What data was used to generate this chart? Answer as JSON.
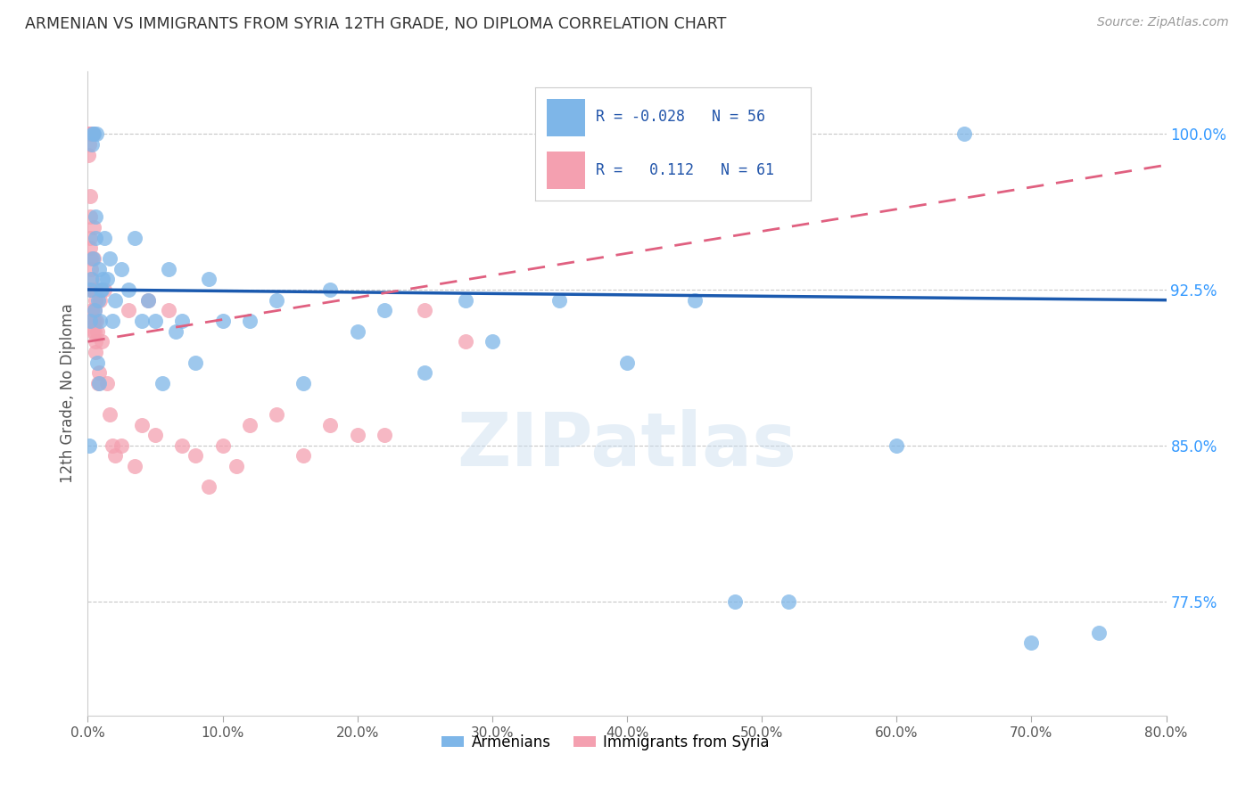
{
  "title": "ARMENIAN VS IMMIGRANTS FROM SYRIA 12TH GRADE, NO DIPLOMA CORRELATION CHART",
  "source": "Source: ZipAtlas.com",
  "xlabel_armenians": "Armenians",
  "xlabel_syria": "Immigrants from Syria",
  "ylabel": "12th Grade, No Diploma",
  "xlim": [
    0.0,
    80.0
  ],
  "ylim": [
    72.0,
    103.0
  ],
  "xticks": [
    0.0,
    10.0,
    20.0,
    30.0,
    40.0,
    50.0,
    60.0,
    70.0,
    80.0
  ],
  "yticks_right": [
    77.5,
    85.0,
    92.5,
    100.0
  ],
  "R_armenians": -0.028,
  "N_armenians": 56,
  "R_syria": 0.112,
  "N_syria": 61,
  "color_armenians": "#7EB6E8",
  "color_syria": "#F4A0B0",
  "trend_color_armenians": "#1B5AAF",
  "trend_color_syria": "#E06080",
  "watermark": "ZIPatlas",
  "background_color": "#FFFFFF",
  "grid_color": "#C8C8C8",
  "title_color": "#333333",
  "source_color": "#999999",
  "axis_label_color": "#555555",
  "tick_color_right": "#3399FF",
  "tick_color_bottom": "#555555",
  "armenians_x": [
    0.1,
    0.15,
    0.2,
    0.25,
    0.3,
    0.35,
    0.4,
    0.45,
    0.5,
    0.55,
    0.6,
    0.65,
    0.7,
    0.75,
    0.8,
    0.85,
    0.9,
    0.95,
    1.0,
    1.1,
    1.2,
    1.4,
    1.6,
    1.8,
    2.0,
    2.5,
    3.0,
    3.5,
    4.0,
    4.5,
    5.0,
    5.5,
    6.0,
    6.5,
    7.0,
    8.0,
    9.0,
    10.0,
    12.0,
    14.0,
    16.0,
    18.0,
    20.0,
    22.0,
    25.0,
    28.0,
    30.0,
    35.0,
    40.0,
    45.0,
    48.0,
    52.0,
    60.0,
    65.0,
    70.0,
    75.0
  ],
  "armenians_y": [
    85.0,
    92.5,
    91.0,
    93.0,
    99.5,
    94.0,
    100.0,
    100.0,
    91.5,
    96.0,
    95.0,
    100.0,
    89.0,
    92.0,
    88.0,
    93.5,
    91.0,
    92.5,
    92.5,
    93.0,
    95.0,
    93.0,
    94.0,
    91.0,
    92.0,
    93.5,
    92.5,
    95.0,
    91.0,
    92.0,
    91.0,
    88.0,
    93.5,
    90.5,
    91.0,
    89.0,
    93.0,
    91.0,
    91.0,
    92.0,
    88.0,
    92.5,
    90.5,
    91.5,
    88.5,
    92.0,
    90.0,
    92.0,
    89.0,
    92.0,
    77.5,
    77.5,
    85.0,
    100.0,
    75.5,
    76.0
  ],
  "syria_x": [
    0.05,
    0.07,
    0.08,
    0.1,
    0.12,
    0.13,
    0.15,
    0.16,
    0.18,
    0.2,
    0.22,
    0.24,
    0.26,
    0.28,
    0.3,
    0.32,
    0.34,
    0.36,
    0.38,
    0.4,
    0.42,
    0.44,
    0.46,
    0.48,
    0.5,
    0.52,
    0.54,
    0.56,
    0.58,
    0.6,
    0.65,
    0.7,
    0.75,
    0.8,
    0.9,
    1.0,
    1.2,
    1.4,
    1.6,
    1.8,
    2.0,
    2.5,
    3.0,
    3.5,
    4.0,
    4.5,
    5.0,
    6.0,
    7.0,
    8.0,
    9.0,
    10.0,
    11.0,
    12.0,
    14.0,
    16.0,
    18.0,
    20.0,
    22.0,
    25.0,
    28.0
  ],
  "syria_y": [
    100.0,
    99.0,
    100.0,
    100.0,
    100.0,
    99.5,
    97.0,
    96.0,
    95.0,
    94.5,
    93.5,
    94.0,
    92.5,
    93.0,
    92.5,
    91.5,
    90.5,
    91.0,
    100.0,
    100.0,
    95.5,
    94.0,
    92.5,
    91.5,
    91.0,
    90.5,
    89.5,
    92.0,
    90.0,
    92.5,
    91.0,
    90.5,
    88.0,
    88.5,
    92.0,
    90.0,
    92.5,
    88.0,
    86.5,
    85.0,
    84.5,
    85.0,
    91.5,
    84.0,
    86.0,
    92.0,
    85.5,
    91.5,
    85.0,
    84.5,
    83.0,
    85.0,
    84.0,
    86.0,
    86.5,
    84.5,
    86.0,
    85.5,
    85.5,
    91.5,
    90.0
  ],
  "trend_arm_x0": 0.0,
  "trend_arm_y0": 92.5,
  "trend_arm_x1": 80.0,
  "trend_arm_y1": 92.0,
  "trend_syr_x0": 0.0,
  "trend_syr_y0": 90.0,
  "trend_syr_x1": 80.0,
  "trend_syr_y1": 98.5
}
